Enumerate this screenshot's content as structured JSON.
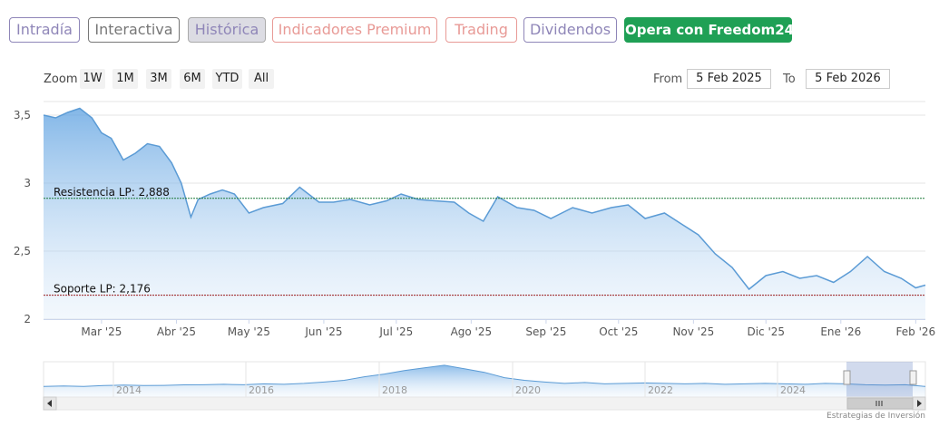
{
  "tabs": [
    {
      "label": "Intradía",
      "color": "#8f86b8",
      "active": false
    },
    {
      "label": "Interactiva",
      "color": "#777777",
      "active": false
    },
    {
      "label": "Histórica",
      "color": "#8f86b8",
      "active": true
    },
    {
      "label": "Indicadores Premium",
      "color": "#e89a96",
      "active": false
    },
    {
      "label": "Trading",
      "color": "#e89a96",
      "active": false
    },
    {
      "label": "Dividendos",
      "color": "#8f86b8",
      "active": false
    },
    {
      "label": "Opera con Freedom24",
      "color": "#1fa055",
      "active": false
    }
  ],
  "zoom": {
    "label": "Zoom",
    "buttons": [
      "1W",
      "1M",
      "3M",
      "6M",
      "YTD",
      "All"
    ]
  },
  "range": {
    "from_label": "From",
    "from_value": "5 Feb 2025",
    "to_label": "To",
    "to_value": "5 Feb 2026"
  },
  "attribution": "Estrategias de Inversión",
  "chart_data": {
    "type": "area",
    "title": "",
    "xlabel": "",
    "ylabel": "",
    "ylim": [
      2,
      3.6
    ],
    "yticks": [
      "2",
      "2,5",
      "3",
      "3,5"
    ],
    "xticks": [
      "Mar '25",
      "Abr '25",
      "May '25",
      "Jun '25",
      "Jul '25",
      "Ago '25",
      "Sep '25",
      "Oct '25",
      "Nov '25",
      "Dic '25",
      "Ene '26",
      "Feb '26"
    ],
    "series": [
      {
        "x": [
          "2025-02-05",
          "2025-02-10",
          "2025-02-15",
          "2025-02-20",
          "2025-02-25",
          "2025-03-01",
          "2025-03-05",
          "2025-03-10",
          "2025-03-15",
          "2025-03-20",
          "2025-03-25",
          "2025-03-30",
          "2025-04-03",
          "2025-04-07",
          "2025-04-10",
          "2025-04-15",
          "2025-04-20",
          "2025-04-25",
          "2025-05-01",
          "2025-05-07",
          "2025-05-15",
          "2025-05-22",
          "2025-05-30",
          "2025-06-05",
          "2025-06-12",
          "2025-06-20",
          "2025-06-27",
          "2025-07-03",
          "2025-07-10",
          "2025-07-17",
          "2025-07-25",
          "2025-07-31",
          "2025-08-06",
          "2025-08-12",
          "2025-08-20",
          "2025-08-27",
          "2025-09-03",
          "2025-09-12",
          "2025-09-20",
          "2025-09-28",
          "2025-10-05",
          "2025-10-12",
          "2025-10-20",
          "2025-10-27",
          "2025-11-03",
          "2025-11-10",
          "2025-11-17",
          "2025-11-24",
          "2025-12-01",
          "2025-12-08",
          "2025-12-15",
          "2025-12-22",
          "2025-12-29",
          "2026-01-05",
          "2026-01-12",
          "2026-01-19",
          "2026-01-26",
          "2026-02-01",
          "2026-02-05"
        ],
        "values": [
          3.5,
          3.48,
          3.52,
          3.55,
          3.48,
          3.37,
          3.33,
          3.17,
          3.22,
          3.29,
          3.27,
          3.15,
          3.0,
          2.75,
          2.88,
          2.92,
          2.95,
          2.92,
          2.78,
          2.82,
          2.85,
          2.97,
          2.86,
          2.86,
          2.88,
          2.84,
          2.87,
          2.92,
          2.88,
          2.87,
          2.86,
          2.78,
          2.72,
          2.9,
          2.82,
          2.8,
          2.74,
          2.82,
          2.78,
          2.82,
          2.84,
          2.74,
          2.78,
          2.7,
          2.62,
          2.48,
          2.38,
          2.22,
          2.32,
          2.35,
          2.3,
          2.32,
          2.27,
          2.35,
          2.46,
          2.35,
          2.3,
          2.23,
          2.25
        ]
      }
    ],
    "plot_lines": [
      {
        "label": "Resistencia LP: 2,888",
        "value": 2.888,
        "color": "#1e7a3a"
      },
      {
        "label": "Soporte LP: 2,176",
        "value": 2.176,
        "color": "#9a1c1c"
      }
    ],
    "navigator": {
      "xticks": [
        "2014",
        "2016",
        "2018",
        "2020",
        "2022",
        "2024"
      ],
      "values": [
        1.2,
        1.25,
        1.2,
        1.3,
        1.35,
        1.3,
        1.32,
        1.38,
        1.4,
        1.45,
        1.4,
        1.5,
        1.45,
        1.55,
        1.7,
        1.9,
        2.3,
        2.6,
        3.0,
        3.3,
        3.6,
        3.2,
        2.8,
        2.2,
        1.9,
        1.7,
        1.55,
        1.65,
        1.5,
        1.55,
        1.6,
        1.55,
        1.5,
        1.55,
        1.45,
        1.5,
        1.55,
        1.5,
        1.45,
        1.55,
        1.5,
        1.4,
        1.35,
        1.4,
        1.2
      ]
    },
    "grid": true,
    "legend": "none"
  }
}
